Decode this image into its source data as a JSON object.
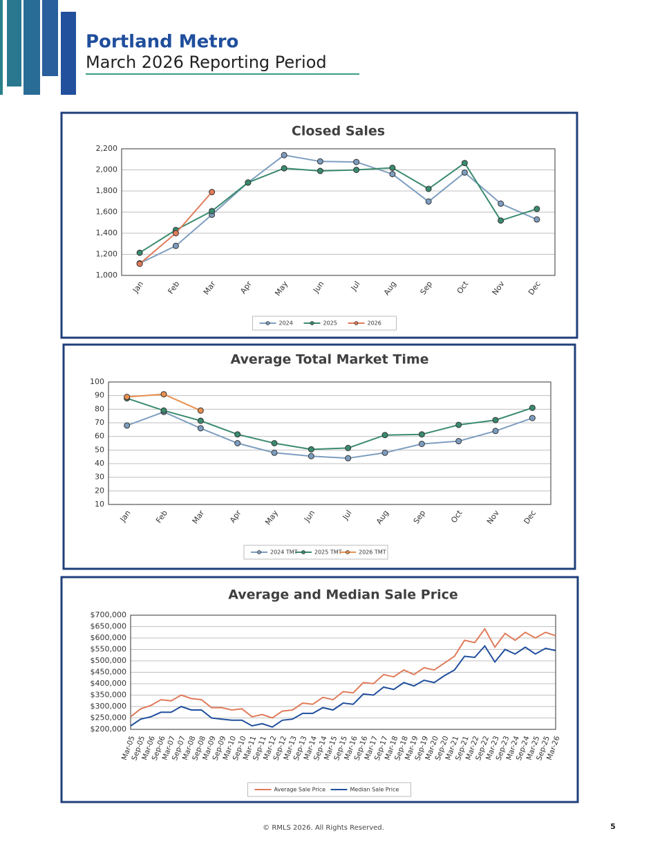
{
  "header": {
    "title": "Portland Metro",
    "subtitle": "March 2026 Reporting Period"
  },
  "footer": {
    "copyright": "© RMLS 2026. All Rights Reserved.",
    "page": "5"
  },
  "chart_data": [
    {
      "type": "line",
      "title": "Closed Sales",
      "categories": [
        "Jan",
        "Feb",
        "Mar",
        "Apr",
        "May",
        "Jun",
        "Jul",
        "Aug",
        "Sep",
        "Oct",
        "Nov",
        "Dec"
      ],
      "series": [
        {
          "name": "2024",
          "color": "#7d9dbf",
          "values": [
            1115,
            1280,
            1575,
            1880,
            2140,
            2080,
            2075,
            1960,
            1700,
            1975,
            1680,
            1530
          ]
        },
        {
          "name": "2025",
          "color": "#3a8a6e",
          "values": [
            1215,
            1430,
            1610,
            1880,
            2015,
            1990,
            2000,
            2020,
            1820,
            2065,
            1520,
            1630
          ]
        },
        {
          "name": "2026",
          "color": "#e07b5a",
          "values": [
            1110,
            1400,
            1790,
            null,
            null,
            null,
            null,
            null,
            null,
            null,
            null,
            null
          ]
        }
      ],
      "ylim": [
        1000,
        2200
      ],
      "yticks": [
        {
          "value": 1000,
          "label": "1,000"
        },
        {
          "value": 1200,
          "label": "1,200"
        },
        {
          "value": 1400,
          "label": "1,400"
        },
        {
          "value": 1600,
          "label": "1,600"
        },
        {
          "value": 1800,
          "label": "1,800"
        },
        {
          "value": 2000,
          "label": "2,000"
        },
        {
          "value": 2200,
          "label": "2,200"
        }
      ],
      "grid": true,
      "markers": true,
      "legend": "bottom"
    },
    {
      "type": "line",
      "title": "Average Total Market Time",
      "categories": [
        "Jan",
        "Feb",
        "Mar",
        "Apr",
        "May",
        "Jun",
        "Jul",
        "Aug",
        "Sep",
        "Oct",
        "Nov",
        "Dec"
      ],
      "series": [
        {
          "name": "2024 TMT",
          "color": "#7d9dbf",
          "values": [
            68,
            78,
            66,
            55,
            48,
            45.5,
            44,
            48,
            54.5,
            56.5,
            64,
            73.5
          ]
        },
        {
          "name": "2025 TMT",
          "color": "#3a8a6e",
          "values": [
            88,
            79,
            71.5,
            61.5,
            55,
            50.5,
            51.5,
            61,
            61.5,
            68.5,
            72,
            81
          ]
        },
        {
          "name": "2026 TMT",
          "color": "#e8904f",
          "values": [
            89,
            91,
            79,
            null,
            null,
            null,
            null,
            null,
            null,
            null,
            null,
            null
          ]
        }
      ],
      "ylim": [
        10,
        100
      ],
      "yticks": [
        10,
        20,
        30,
        40,
        50,
        60,
        70,
        80,
        90,
        100
      ],
      "grid": true,
      "markers": true,
      "legend": "bottom"
    },
    {
      "type": "line",
      "title": "Average and Median Sale Price",
      "categories": [
        "Mar-05",
        "Sep-05",
        "Mar-06",
        "Sep-06",
        "Mar-07",
        "Sep-07",
        "Mar-08",
        "Sep-08",
        "Mar-09",
        "Sep-09",
        "Mar-10",
        "Sep-10",
        "Mar-11",
        "Sep-11",
        "Mar-12",
        "Sep-12",
        "Mar-13",
        "Sep-13",
        "Mar-14",
        "Sep-14",
        "Mar-15",
        "Sep-15",
        "Mar-16",
        "Sep-16",
        "Mar-17",
        "Sep-17",
        "Mar-18",
        "Sep-18",
        "Mar-19",
        "Sep-19",
        "Mar-20",
        "Sep-20",
        "Mar-21",
        "Sep-21",
        "Mar-22",
        "Sep-22",
        "Mar-23",
        "Sep-23",
        "Mar-24",
        "Sep-24",
        "Mar-25",
        "Sep-25",
        "Mar-26"
      ],
      "series": [
        {
          "name": "Average Sale Price",
          "color": "#e07b5a",
          "values": [
            255000,
            290000,
            305000,
            330000,
            325000,
            350000,
            335000,
            330000,
            295000,
            295000,
            285000,
            290000,
            255000,
            265000,
            250000,
            280000,
            285000,
            315000,
            310000,
            340000,
            330000,
            365000,
            360000,
            405000,
            400000,
            440000,
            430000,
            460000,
            440000,
            470000,
            460000,
            490000,
            520000,
            590000,
            580000,
            640000,
            560000,
            620000,
            590000,
            625000,
            600000,
            625000,
            610000
          ]
        },
        {
          "name": "Median Sale Price",
          "color": "#1f4e9c",
          "values": [
            215000,
            245000,
            255000,
            275000,
            275000,
            300000,
            285000,
            285000,
            250000,
            245000,
            240000,
            240000,
            215000,
            225000,
            210000,
            240000,
            245000,
            270000,
            270000,
            295000,
            285000,
            315000,
            310000,
            355000,
            350000,
            385000,
            375000,
            405000,
            390000,
            415000,
            405000,
            435000,
            460000,
            520000,
            515000,
            565000,
            495000,
            550000,
            530000,
            560000,
            530000,
            555000,
            545000
          ]
        }
      ],
      "ylim": [
        200000,
        700000
      ],
      "yticks": [
        {
          "value": 200000,
          "label": "$200,000"
        },
        {
          "value": 250000,
          "label": "$250,000"
        },
        {
          "value": 300000,
          "label": "$300,000"
        },
        {
          "value": 350000,
          "label": "$350,000"
        },
        {
          "value": 400000,
          "label": "$400,000"
        },
        {
          "value": 450000,
          "label": "$450,000"
        },
        {
          "value": 500000,
          "label": "$500,000"
        },
        {
          "value": 550000,
          "label": "$550,000"
        },
        {
          "value": 600000,
          "label": "$600,000"
        },
        {
          "value": 650000,
          "label": "$650,000"
        },
        {
          "value": 700000,
          "label": "$700,000"
        }
      ],
      "grid": true,
      "markers": false,
      "legend": "bottom"
    }
  ]
}
